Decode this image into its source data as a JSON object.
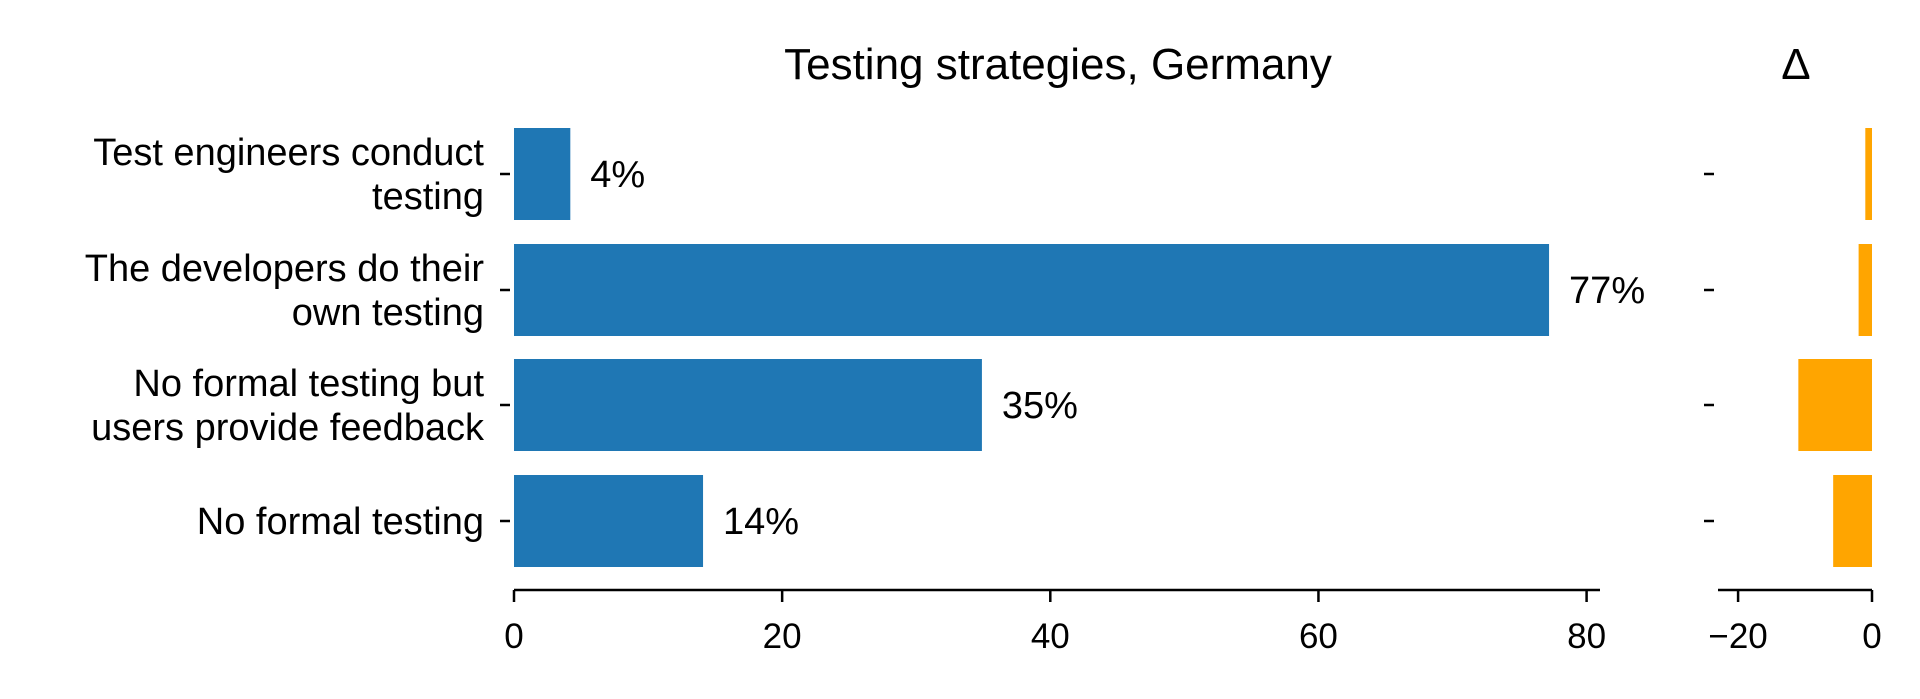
{
  "chart_data": [
    {
      "type": "bar",
      "orientation": "horizontal",
      "title": "Testing strategies, Germany",
      "categories": [
        [
          "Test engineers conduct",
          "testing"
        ],
        [
          "The developers do their",
          "own testing"
        ],
        [
          "No formal testing but",
          "users provide feedback"
        ],
        [
          "No formal testing"
        ]
      ],
      "values": [
        4.2,
        77.2,
        34.9,
        14.1
      ],
      "value_labels": [
        "4%",
        "77%",
        "35%",
        "14%"
      ],
      "xlim": [
        0,
        81
      ],
      "xticks": [
        0,
        20,
        40,
        60,
        80
      ],
      "grid": false,
      "color": "#1f77b4"
    },
    {
      "type": "bar",
      "orientation": "horizontal",
      "title": "Δ",
      "values": [
        -1.0,
        -2.0,
        -11.0,
        -5.8
      ],
      "xlim": [
        -23,
        0
      ],
      "xticks": [
        -20,
        0
      ],
      "xtick_labels": [
        "−20",
        "0"
      ],
      "grid": false,
      "color": "#ffa500"
    }
  ]
}
